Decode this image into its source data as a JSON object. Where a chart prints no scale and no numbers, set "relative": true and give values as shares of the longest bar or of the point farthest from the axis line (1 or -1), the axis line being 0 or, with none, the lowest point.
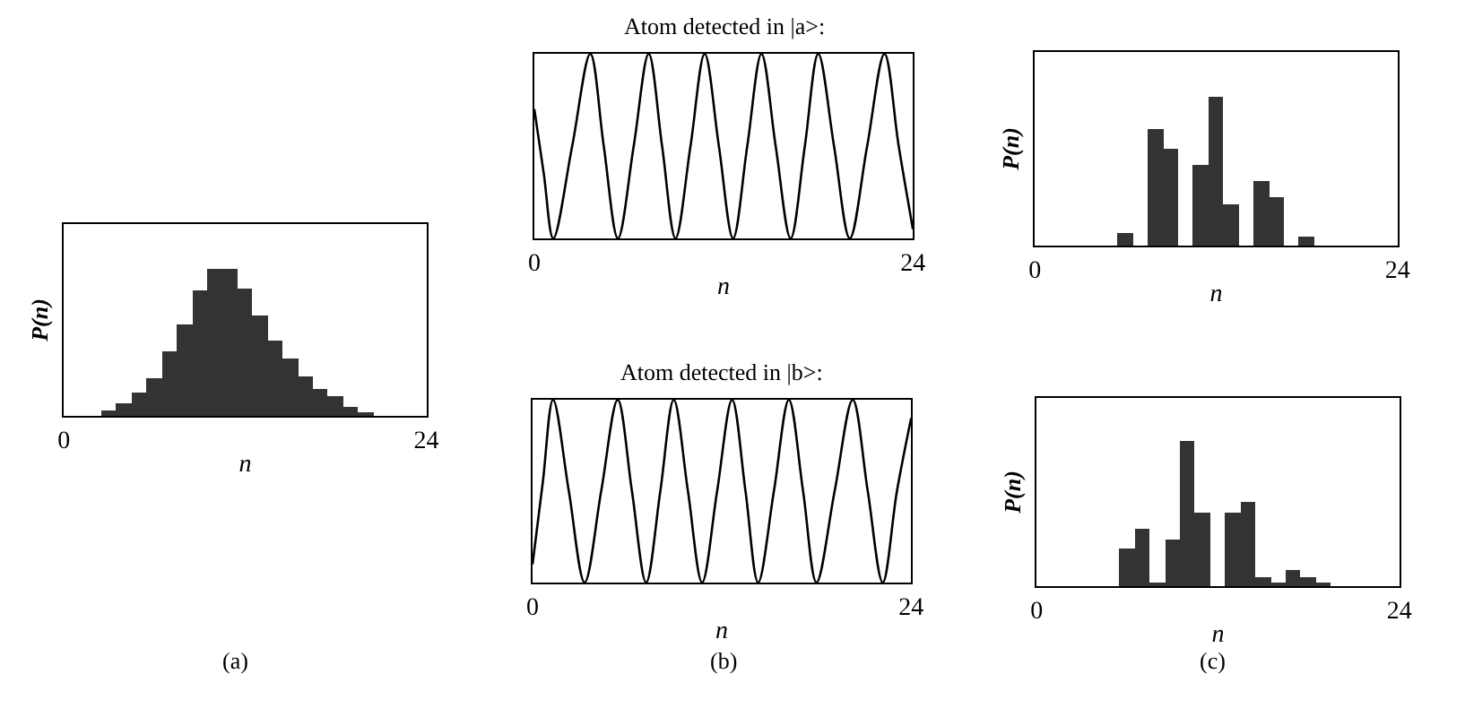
{
  "chart_data": [
    {
      "type": "bar",
      "relative": true,
      "color": "#333333",
      "xlabel": "n",
      "ylabel": "P(n)",
      "xlim": [
        0,
        24
      ],
      "xticks": [
        0,
        24
      ],
      "tick_labels": "x",
      "annotations": [
        "(a)"
      ],
      "x": [
        3,
        4,
        5,
        6,
        7,
        8,
        9,
        10,
        11,
        12,
        13,
        14,
        15,
        16,
        17,
        18,
        19,
        20
      ],
      "values": [
        0.04,
        0.09,
        0.16,
        0.25,
        0.44,
        0.62,
        0.85,
        1,
        1,
        0.86,
        0.68,
        0.51,
        0.39,
        0.27,
        0.18,
        0.13,
        0.06,
        0.03
      ]
    },
    {
      "type": "line",
      "title": "Atom detected in |a>:",
      "relative": true,
      "xlabel": "n",
      "xlim": [
        0,
        24
      ],
      "xticks": [
        0,
        24
      ],
      "tick_labels": "x",
      "series": [
        {
          "color": "#000000",
          "x": [
            0,
            0.6,
            1.2,
            2.4,
            3.55,
            4.4,
            5.3,
            6.3,
            7.25,
            8.1,
            8.95,
            9.9,
            10.8,
            11.7,
            12.6,
            13.5,
            14.4,
            15.3,
            16.25,
            17.15,
            18.0,
            19.0,
            20.0,
            21.1,
            22.2,
            23.1,
            24
          ],
          "values": [
            0.7,
            0.35,
            0,
            0.5,
            1,
            0.5,
            0,
            0.5,
            1,
            0.5,
            0,
            0.5,
            1,
            0.5,
            0,
            0.5,
            1,
            0.5,
            0,
            0.5,
            1,
            0.5,
            0,
            0.5,
            1,
            0.5,
            0.05
          ]
        }
      ]
    },
    {
      "type": "bar",
      "relative": true,
      "color": "#333333",
      "xlabel": "n",
      "ylabel": "P(n)",
      "xlim": [
        0,
        24
      ],
      "xticks": [
        0,
        24
      ],
      "tick_labels": "x",
      "x": [
        6,
        7,
        8,
        9,
        10,
        11,
        12,
        13,
        14,
        15,
        16,
        17,
        18
      ],
      "values": [
        0.08,
        0,
        0.78,
        0.65,
        0,
        0.54,
        1,
        0.28,
        0,
        0.43,
        0.33,
        0,
        0.06
      ]
    },
    {
      "type": "line",
      "title": "Atom detected in |b>:",
      "relative": true,
      "xlabel": "n",
      "xlim": [
        0,
        24
      ],
      "xticks": [
        0,
        24
      ],
      "tick_labels": "x",
      "annotations": [
        "(b)"
      ],
      "series": [
        {
          "color": "#000000",
          "x": [
            0,
            0.65,
            1.3,
            2.3,
            3.3,
            4.35,
            5.4,
            6.3,
            7.2,
            8.1,
            8.95,
            9.85,
            10.75,
            11.7,
            12.65,
            13.5,
            14.3,
            15.3,
            16.25,
            17.15,
            18.0,
            19.15,
            20.3,
            21.25,
            22.2,
            23.1,
            24
          ],
          "values": [
            0.1,
            0.55,
            1,
            0.5,
            0,
            0.5,
            1,
            0.5,
            0,
            0.5,
            1,
            0.5,
            0,
            0.5,
            1,
            0.5,
            0,
            0.5,
            1,
            0.5,
            0,
            0.5,
            1,
            0.5,
            0,
            0.5,
            0.9
          ]
        }
      ]
    },
    {
      "type": "bar",
      "relative": true,
      "color": "#333333",
      "xlabel": "n",
      "ylabel": "P(n)",
      "xlim": [
        0,
        24
      ],
      "xticks": [
        0,
        24
      ],
      "tick_labels": "x",
      "annotations": [
        "(c)"
      ],
      "x": [
        6,
        7,
        8,
        9,
        10,
        11,
        12,
        13,
        14,
        15,
        16,
        17,
        18,
        19
      ],
      "values": [
        0.26,
        0.4,
        0.02,
        0.32,
        1,
        0.51,
        0,
        0.51,
        0.58,
        0.06,
        0.02,
        0.11,
        0.06,
        0.02
      ]
    }
  ]
}
